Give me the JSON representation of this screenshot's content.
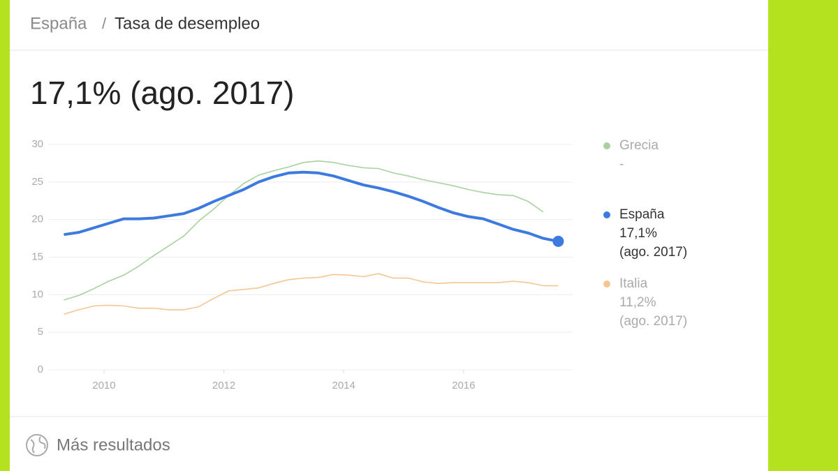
{
  "header": {
    "breadcrumb": [
      "España",
      "Tasa de desempleo"
    ],
    "separator": "/"
  },
  "headline": "17,1% (ago. 2017)",
  "chart_data": {
    "type": "line",
    "x": [
      2009.33,
      2009.58,
      2009.83,
      2010.08,
      2010.33,
      2010.58,
      2010.83,
      2011.08,
      2011.33,
      2011.58,
      2011.83,
      2012.08,
      2012.33,
      2012.58,
      2012.83,
      2013.08,
      2013.33,
      2013.58,
      2013.83,
      2014.08,
      2014.33,
      2014.58,
      2014.83,
      2015.08,
      2015.33,
      2015.58,
      2015.83,
      2016.08,
      2016.33,
      2016.58,
      2016.83,
      2017.08,
      2017.33,
      2017.58
    ],
    "series": [
      {
        "name": "Grecia",
        "color": "#a9d1a0",
        "value_label": "-",
        "values": [
          9.3,
          9.9,
          10.8,
          11.8,
          12.6,
          13.8,
          15.2,
          16.5,
          17.8,
          19.8,
          21.4,
          23.2,
          24.8,
          25.9,
          26.5,
          27.0,
          27.6,
          27.8,
          27.6,
          27.2,
          26.9,
          26.8,
          26.2,
          25.8,
          25.3,
          24.9,
          24.5,
          24.0,
          23.6,
          23.3,
          23.2,
          22.4,
          21.0,
          null
        ]
      },
      {
        "name": "España",
        "color": "#3d7ae0",
        "value_label": "17,1%",
        "date_label": "(ago. 2017)",
        "values": [
          18.0,
          18.3,
          18.9,
          19.5,
          20.1,
          20.1,
          20.2,
          20.5,
          20.8,
          21.5,
          22.4,
          23.2,
          24.0,
          25.0,
          25.7,
          26.2,
          26.3,
          26.2,
          25.8,
          25.2,
          24.6,
          24.2,
          23.7,
          23.1,
          22.4,
          21.6,
          20.9,
          20.4,
          20.1,
          19.4,
          18.7,
          18.2,
          17.5,
          17.1
        ]
      },
      {
        "name": "Italia",
        "color": "#f5c692",
        "value_label": "11,2%",
        "date_label": "(ago. 2017)",
        "values": [
          7.4,
          8.0,
          8.5,
          8.6,
          8.5,
          8.2,
          8.2,
          8.0,
          8.0,
          8.4,
          9.5,
          10.5,
          10.7,
          10.9,
          11.5,
          12.0,
          12.2,
          12.3,
          12.7,
          12.6,
          12.4,
          12.8,
          12.2,
          12.2,
          11.7,
          11.5,
          11.6,
          11.6,
          11.6,
          11.6,
          11.8,
          11.6,
          11.2,
          11.2
        ]
      }
    ],
    "xlim": [
      2009.08,
      2017.82
    ],
    "xticks": [
      2010,
      2012,
      2014,
      2016
    ],
    "ylim": [
      0,
      30
    ],
    "yticks": [
      0,
      5,
      10,
      15,
      20,
      25,
      30
    ],
    "grid": true
  },
  "footer": {
    "link": "Más resultados"
  }
}
